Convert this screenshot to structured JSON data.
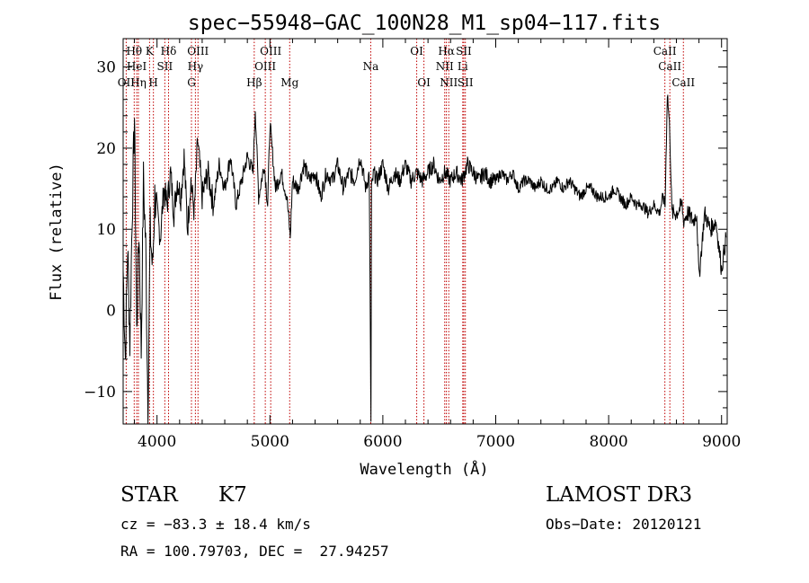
{
  "chart_data": {
    "type": "line",
    "title": "spec−55948−GAC_100N28_M1_sp04−117.fits",
    "xlabel": "Wavelength (Å)",
    "ylabel": "Flux (relative)",
    "xlim": [
      3700,
      9050
    ],
    "ylim": [
      -14,
      33.5
    ],
    "xticks": [
      4000,
      5000,
      6000,
      7000,
      8000,
      9000
    ],
    "yticks": [
      -10,
      0,
      10,
      20,
      30
    ],
    "xtick_labels": [
      "4000",
      "5000",
      "6000",
      "7000",
      "8000",
      "9000"
    ],
    "ytick_labels": [
      "−10",
      "0",
      "10",
      "20",
      "30"
    ],
    "series": [
      {
        "name": "flux",
        "x": [
          3700,
          3720,
          3740,
          3760,
          3780,
          3800,
          3820,
          3840,
          3860,
          3880,
          3900,
          3920,
          3940,
          3960,
          3980,
          4000,
          4030,
          4060,
          4090,
          4120,
          4150,
          4180,
          4210,
          4240,
          4270,
          4300,
          4330,
          4360,
          4400,
          4450,
          4500,
          4550,
          4600,
          4650,
          4700,
          4750,
          4800,
          4850,
          4870,
          4900,
          4950,
          4980,
          5000,
          5050,
          5100,
          5150,
          5180,
          5200,
          5250,
          5300,
          5350,
          5400,
          5450,
          5500,
          5550,
          5600,
          5650,
          5700,
          5750,
          5800,
          5850,
          5880,
          5890,
          5895,
          5900,
          5920,
          5950,
          6000,
          6050,
          6100,
          6150,
          6200,
          6250,
          6300,
          6350,
          6400,
          6450,
          6500,
          6550,
          6600,
          6650,
          6700,
          6750,
          6800,
          6850,
          6900,
          6950,
          7000,
          7050,
          7100,
          7150,
          7200,
          7250,
          7300,
          7350,
          7400,
          7450,
          7500,
          7550,
          7600,
          7650,
          7700,
          7750,
          7800,
          7850,
          7900,
          7950,
          8000,
          8050,
          8100,
          8150,
          8200,
          8250,
          8300,
          8350,
          8400,
          8450,
          8480,
          8500,
          8520,
          8542,
          8560,
          8600,
          8650,
          8662,
          8700,
          8750,
          8780,
          8800,
          8850,
          8900,
          8950,
          9000,
          9040
        ],
        "y": [
          5,
          -6,
          8,
          -4,
          12,
          24,
          -3,
          10,
          -5,
          16,
          8,
          -12,
          10,
          5,
          14,
          12,
          9,
          15,
          13,
          17,
          12,
          16,
          14,
          19,
          10,
          16,
          12,
          21,
          14,
          17,
          13,
          18,
          15,
          19,
          13,
          16,
          19,
          17,
          25,
          14,
          18,
          13,
          23,
          15,
          17,
          14,
          9,
          16,
          15,
          18,
          16,
          17,
          14,
          17,
          16,
          18,
          15,
          17,
          16,
          19,
          15,
          17,
          -5,
          -14,
          15,
          17,
          16,
          18,
          15,
          17,
          16,
          18,
          16,
          17,
          16,
          17,
          18,
          16,
          17,
          16,
          17,
          16,
          18,
          17,
          16,
          17,
          16,
          16,
          17,
          16,
          17,
          15,
          16,
          16,
          15,
          16,
          15,
          15,
          16,
          15,
          16,
          15,
          14,
          15,
          15,
          14,
          14,
          14,
          15,
          14,
          13,
          14,
          13,
          13,
          12,
          13,
          12,
          14,
          13,
          27,
          22,
          12,
          12,
          13,
          11,
          12,
          11,
          12,
          4,
          12,
          10,
          11,
          5,
          9
        ]
      }
    ],
    "lines": [
      {
        "label": "Hθ",
        "wavelength": 3798,
        "tier": 1
      },
      {
        "label": "OII",
        "wavelength": 3727,
        "tier": 3
      },
      {
        "label": "HeI",
        "wavelength": 3820,
        "tier": 2
      },
      {
        "label": "Hη",
        "wavelength": 3835,
        "tier": 3
      },
      {
        "label": "K",
        "wavelength": 3934,
        "tier": 1
      },
      {
        "label": "H",
        "wavelength": 3968,
        "tier": 3
      },
      {
        "label": "SII",
        "wavelength": 4069,
        "tier": 2
      },
      {
        "label": "Hδ",
        "wavelength": 4102,
        "tier": 1
      },
      {
        "label": "OIII",
        "wavelength": 4363,
        "tier": 1
      },
      {
        "label": "Hγ",
        "wavelength": 4340,
        "tier": 2
      },
      {
        "label": "G",
        "wavelength": 4305,
        "tier": 3
      },
      {
        "label": "Hβ",
        "wavelength": 4861,
        "tier": 3
      },
      {
        "label": "OIII",
        "wavelength": 4959,
        "tier": 2
      },
      {
        "label": "OIII",
        "wavelength": 5007,
        "tier": 1
      },
      {
        "label": "Mg",
        "wavelength": 5175,
        "tier": 3
      },
      {
        "label": "Na",
        "wavelength": 5893,
        "tier": 2
      },
      {
        "label": "OI",
        "wavelength": 6300,
        "tier": 1
      },
      {
        "label": "OI",
        "wavelength": 6364,
        "tier": 3
      },
      {
        "label": "NII",
        "wavelength": 6548,
        "tier": 2
      },
      {
        "label": "NII",
        "wavelength": 6584,
        "tier": 3
      },
      {
        "label": "Hα",
        "wavelength": 6563,
        "tier": 1
      },
      {
        "label": "SII",
        "wavelength": 6717,
        "tier": 1
      },
      {
        "label": "Li",
        "wavelength": 6708,
        "tier": 2
      },
      {
        "label": "SII",
        "wavelength": 6731,
        "tier": 3
      },
      {
        "label": "CaII",
        "wavelength": 8498,
        "tier": 1
      },
      {
        "label": "CaII",
        "wavelength": 8542,
        "tier": 2
      },
      {
        "label": "CaII",
        "wavelength": 8662,
        "tier": 3
      }
    ]
  },
  "info": {
    "class": "STAR",
    "subclass": "K7",
    "survey": "LAMOST DR3",
    "cz": "cz = −83.3 ± 18.4 km/s",
    "obs_date": "Obs−Date: 20120121",
    "coords": "RA = 100.79703, DEC =  27.94257"
  }
}
